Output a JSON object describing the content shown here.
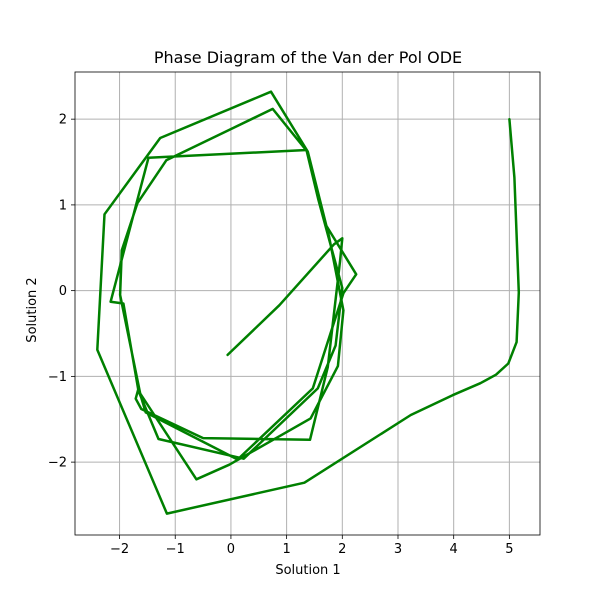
{
  "chart_data": {
    "type": "line",
    "title": "Phase Diagram of the Van der Pol ODE",
    "xlabel": "Solution 1",
    "ylabel": "Solution 2",
    "xlim": [
      -2.8,
      5.55
    ],
    "ylim": [
      -2.85,
      2.55
    ],
    "x_ticks": [
      -2,
      -1,
      0,
      1,
      2,
      3,
      4,
      5
    ],
    "x_tick_labels": [
      "−2",
      "−1",
      "0",
      "1",
      "2",
      "3",
      "4",
      "5"
    ],
    "y_ticks": [
      -2,
      -1,
      0,
      1,
      2
    ],
    "y_tick_labels": [
      "−2",
      "−1",
      "0",
      "1",
      "2"
    ],
    "grid": true,
    "line_color": "#008000",
    "series": [
      {
        "x": [
          5.0,
          5.09,
          5.17,
          5.13,
          4.98,
          4.76,
          4.48,
          3.98,
          3.23,
          1.32,
          -1.15,
          -2.4,
          -2.27,
          -1.27,
          0.72,
          1.38,
          1.76,
          2.02,
          1.92,
          1.43,
          -0.03,
          -0.62,
          -1.63,
          -1.99,
          -1.96,
          -1.68,
          -1.16,
          0.75,
          1.36,
          1.57,
          2.0,
          1.88,
          1.56,
          0.23,
          -1.3,
          -1.66,
          -1.93,
          -2.16,
          -1.48,
          1.36,
          1.71,
          2.25,
          2.02,
          1.47,
          0.12,
          -1.53,
          -1.66,
          -1.71,
          -1.61,
          -0.5,
          1.42,
          1.74,
          1.96,
          2.0,
          1.85,
          0.87,
          -0.06
        ],
        "y": [
          2.0,
          1.32,
          -0.02,
          -0.6,
          -0.85,
          -0.98,
          -1.08,
          -1.22,
          -1.45,
          -2.24,
          -2.6,
          -0.69,
          0.89,
          1.78,
          2.32,
          1.62,
          0.64,
          -0.23,
          -0.88,
          -1.49,
          -2.03,
          -2.2,
          -1.2,
          -0.05,
          0.47,
          1.02,
          1.52,
          2.12,
          1.63,
          1.06,
          0.03,
          -0.64,
          -1.14,
          -1.96,
          -1.73,
          -1.17,
          -0.15,
          -0.13,
          1.55,
          1.64,
          0.76,
          0.19,
          -0.03,
          -1.14,
          -1.97,
          -1.42,
          -1.14,
          -1.26,
          -1.38,
          -1.72,
          -1.74,
          -0.89,
          0.35,
          0.61,
          0.54,
          -0.17,
          -0.75
        ]
      }
    ]
  }
}
